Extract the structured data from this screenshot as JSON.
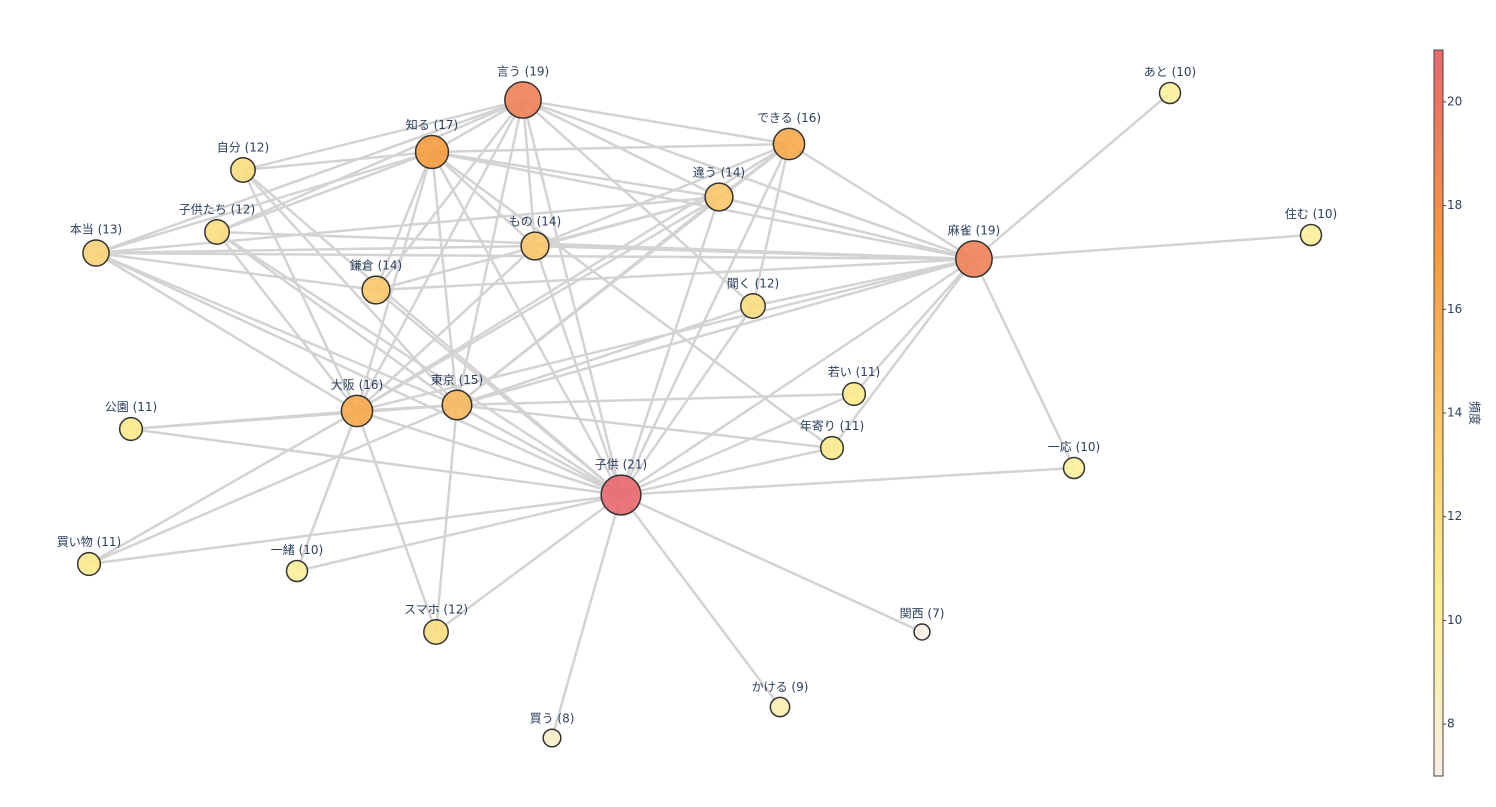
{
  "chart_data": {
    "type": "network",
    "nodes": [
      {
        "label": "言う (19)",
        "value": 19
      },
      {
        "label": "知る (17)",
        "value": 17
      },
      {
        "label": "できる (16)",
        "value": 16
      },
      {
        "label": "自分 (12)",
        "value": 12
      },
      {
        "label": "違う (14)",
        "value": 14
      },
      {
        "label": "子供たち (12)",
        "value": 12
      },
      {
        "label": "本当 (13)",
        "value": 13
      },
      {
        "label": "もの (14)",
        "value": 14
      },
      {
        "label": "麻雀 (19)",
        "value": 19
      },
      {
        "label": "住む (10)",
        "value": 10
      },
      {
        "label": "あと (10)",
        "value": 10
      },
      {
        "label": "鎌倉 (14)",
        "value": 14
      },
      {
        "label": "聞く (12)",
        "value": 12
      },
      {
        "label": "若い (11)",
        "value": 11
      },
      {
        "label": "大阪 (16)",
        "value": 16
      },
      {
        "label": "東京 (15)",
        "value": 15
      },
      {
        "label": "公園 (11)",
        "value": 11
      },
      {
        "label": "年寄り (11)",
        "value": 11
      },
      {
        "label": "一応 (10)",
        "value": 10
      },
      {
        "label": "子供 (21)",
        "value": 21
      },
      {
        "label": "買い物 (11)",
        "value": 11
      },
      {
        "label": "一緒 (10)",
        "value": 10
      },
      {
        "label": "スマホ (12)",
        "value": 12
      },
      {
        "label": "関西 (7)",
        "value": 7
      },
      {
        "label": "かける (9)",
        "value": 9
      },
      {
        "label": "買う (8)",
        "value": 8
      }
    ],
    "edges": [
      [
        19,
        0
      ],
      [
        19,
        1
      ],
      [
        19,
        2
      ],
      [
        19,
        3
      ],
      [
        19,
        4
      ],
      [
        19,
        5
      ],
      [
        19,
        6
      ],
      [
        19,
        7
      ],
      [
        19,
        8
      ],
      [
        19,
        11
      ],
      [
        19,
        12
      ],
      [
        19,
        13
      ],
      [
        19,
        14
      ],
      [
        19,
        15
      ],
      [
        19,
        16
      ],
      [
        19,
        17
      ],
      [
        19,
        18
      ],
      [
        19,
        20
      ],
      [
        19,
        21
      ],
      [
        19,
        22
      ],
      [
        19,
        23
      ],
      [
        19,
        24
      ],
      [
        19,
        25
      ],
      [
        8,
        10
      ],
      [
        8,
        9
      ],
      [
        8,
        18
      ],
      [
        8,
        0
      ],
      [
        8,
        2
      ],
      [
        8,
        4
      ],
      [
        8,
        7
      ],
      [
        8,
        11
      ],
      [
        8,
        12
      ],
      [
        8,
        13
      ],
      [
        8,
        14
      ],
      [
        8,
        15
      ],
      [
        8,
        6
      ],
      [
        8,
        5
      ],
      [
        8,
        1
      ],
      [
        8,
        17
      ],
      [
        0,
        1
      ],
      [
        0,
        2
      ],
      [
        0,
        4
      ],
      [
        0,
        7
      ],
      [
        0,
        11
      ],
      [
        0,
        14
      ],
      [
        0,
        15
      ],
      [
        0,
        3
      ],
      [
        0,
        5
      ],
      [
        0,
        6
      ],
      [
        0,
        12
      ],
      [
        1,
        2
      ],
      [
        1,
        3
      ],
      [
        1,
        5
      ],
      [
        1,
        6
      ],
      [
        1,
        11
      ],
      [
        1,
        14
      ],
      [
        1,
        15
      ],
      [
        1,
        7
      ],
      [
        1,
        4
      ],
      [
        1,
        17
      ],
      [
        2,
        4
      ],
      [
        2,
        7
      ],
      [
        2,
        14
      ],
      [
        2,
        15
      ],
      [
        2,
        12
      ],
      [
        4,
        6
      ],
      [
        4,
        14
      ],
      [
        4,
        15
      ],
      [
        4,
        7
      ],
      [
        4,
        11
      ],
      [
        6,
        14
      ],
      [
        6,
        15
      ],
      [
        6,
        7
      ],
      [
        6,
        11
      ],
      [
        14,
        15
      ],
      [
        14,
        16
      ],
      [
        14,
        20
      ],
      [
        14,
        21
      ],
      [
        14,
        22
      ],
      [
        14,
        7
      ],
      [
        14,
        3
      ],
      [
        14,
        5
      ],
      [
        15,
        16
      ],
      [
        15,
        17
      ],
      [
        15,
        13
      ],
      [
        15,
        20
      ],
      [
        15,
        22
      ],
      [
        15,
        3
      ],
      [
        15,
        5
      ],
      [
        15,
        12
      ]
    ],
    "colorbar_title": "頻度",
    "clim": [
      7,
      21
    ],
    "cticks": [
      8,
      10,
      12,
      14,
      16,
      18,
      20
    ],
    "colorscale": [
      [
        0,
        "#f7efe3"
      ],
      [
        0.25,
        "#fdef8e"
      ],
      [
        0.5,
        "#fbc66a"
      ],
      [
        0.72,
        "#f79a3e"
      ],
      [
        1,
        "#e8686e"
      ]
    ],
    "edge_color": "#d3d3d3",
    "node_border": "#333333"
  }
}
